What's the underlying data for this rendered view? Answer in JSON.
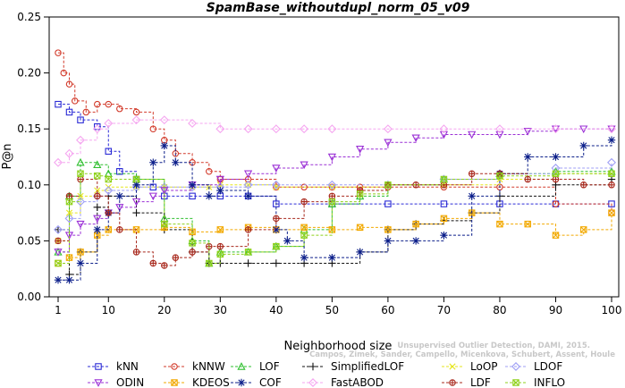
{
  "chart_data": {
    "type": "line",
    "title": "SpamBase_withoutdupl_norm_05_v09",
    "xlabel": "Neighborhood size",
    "ylabel": "P@n",
    "xlim": [
      1,
      100
    ],
    "ylim": [
      0,
      0.25
    ],
    "x_ticks": [
      "1",
      "10",
      "20",
      "30",
      "40",
      "50",
      "60",
      "70",
      "80",
      "90",
      "100"
    ],
    "y_ticks": [
      "0.00",
      "0.05",
      "0.10",
      "0.15",
      "0.20",
      "0.25"
    ],
    "grid": false,
    "legend_position": "bottom",
    "watermark": [
      "Campos, Zimek, Sander, Campello, Micenkova, Schubert, Assent, Houle",
      "Unsupervised Outlier Detection, DAMI, 2015."
    ],
    "series": [
      {
        "name": "kNN",
        "color": "#2b2bd6",
        "marker": "square",
        "x": [
          1,
          3,
          5,
          8,
          10,
          12,
          15,
          18,
          20,
          25,
          30,
          35,
          40,
          50,
          60,
          70,
          80,
          90,
          100
        ],
        "y": [
          0.172,
          0.165,
          0.158,
          0.152,
          0.13,
          0.112,
          0.105,
          0.098,
          0.09,
          0.09,
          0.09,
          0.09,
          0.083,
          0.083,
          0.083,
          0.083,
          0.083,
          0.083,
          0.083
        ]
      },
      {
        "name": "kNNW",
        "color": "#d23a2a",
        "marker": "circle",
        "x": [
          1,
          2,
          3,
          4,
          6,
          8,
          10,
          12,
          15,
          18,
          20,
          22,
          25,
          28,
          30,
          35,
          40,
          45,
          50,
          55,
          60,
          70,
          80,
          90,
          100
        ],
        "y": [
          0.218,
          0.2,
          0.19,
          0.175,
          0.165,
          0.172,
          0.172,
          0.168,
          0.165,
          0.15,
          0.14,
          0.128,
          0.12,
          0.112,
          0.105,
          0.105,
          0.098,
          0.098,
          0.098,
          0.098,
          0.098,
          0.098,
          0.098,
          0.083,
          0.075
        ]
      },
      {
        "name": "LOF",
        "color": "#2fbf2f",
        "marker": "triangle-up",
        "x": [
          1,
          3,
          5,
          8,
          10,
          15,
          20,
          25,
          28,
          30,
          35,
          40,
          45,
          50,
          55,
          60,
          70,
          80,
          90,
          100
        ],
        "y": [
          0.04,
          0.09,
          0.12,
          0.118,
          0.11,
          0.105,
          0.07,
          0.05,
          0.03,
          0.04,
          0.04,
          0.045,
          0.06,
          0.083,
          0.09,
          0.1,
          0.105,
          0.11,
          0.112,
          0.112
        ]
      },
      {
        "name": "SimplifiedLOF",
        "color": "#111111",
        "marker": "plus",
        "x": [
          1,
          3,
          5,
          8,
          10,
          15,
          20,
          25,
          28,
          30,
          35,
          40,
          45,
          50,
          55,
          60,
          65,
          70,
          75,
          80,
          90,
          100
        ],
        "y": [
          0.06,
          0.02,
          0.04,
          0.08,
          0.09,
          0.075,
          0.06,
          0.04,
          0.03,
          0.03,
          0.03,
          0.03,
          0.03,
          0.03,
          0.04,
          0.06,
          0.065,
          0.068,
          0.075,
          0.09,
          0.1,
          0.105
        ]
      },
      {
        "name": "LoOP",
        "color": "#e6e61e",
        "marker": "x",
        "x": [
          1,
          3,
          5,
          8,
          10,
          15,
          20,
          25,
          28,
          30,
          35,
          40,
          50,
          60,
          70,
          80,
          90,
          100
        ],
        "y": [
          0.05,
          0.075,
          0.09,
          0.095,
          0.098,
          0.098,
          0.098,
          0.098,
          0.098,
          0.1,
          0.1,
          0.098,
          0.098,
          0.1,
          0.1,
          0.105,
          0.11,
          0.11
        ]
      },
      {
        "name": "LDOF",
        "color": "#9f9ff5",
        "marker": "diamond",
        "x": [
          1,
          3,
          5,
          8,
          10,
          15,
          20,
          25,
          30,
          35,
          40,
          50,
          60,
          70,
          80,
          90,
          100
        ],
        "y": [
          0.06,
          0.07,
          0.085,
          0.09,
          0.095,
          0.098,
          0.098,
          0.098,
          0.098,
          0.1,
          0.1,
          0.1,
          0.1,
          0.105,
          0.11,
          0.115,
          0.12
        ]
      },
      {
        "name": "ODIN",
        "color": "#9b30d6",
        "marker": "triangle-down",
        "x": [
          1,
          3,
          5,
          8,
          10,
          12,
          15,
          18,
          20,
          25,
          30,
          35,
          40,
          45,
          50,
          55,
          60,
          65,
          70,
          75,
          80,
          85,
          90,
          95,
          100
        ],
        "y": [
          0.04,
          0.055,
          0.065,
          0.07,
          0.075,
          0.08,
          0.085,
          0.09,
          0.095,
          0.1,
          0.105,
          0.11,
          0.115,
          0.118,
          0.125,
          0.132,
          0.138,
          0.142,
          0.145,
          0.145,
          0.145,
          0.148,
          0.15,
          0.15,
          0.15
        ]
      },
      {
        "name": "KDEOS",
        "color": "#f2a900",
        "marker": "square-x",
        "x": [
          1,
          3,
          5,
          8,
          10,
          15,
          20,
          25,
          30,
          35,
          40,
          45,
          50,
          55,
          60,
          65,
          70,
          75,
          80,
          85,
          90,
          95,
          100
        ],
        "y": [
          0.03,
          0.035,
          0.04,
          0.055,
          0.06,
          0.06,
          0.062,
          0.058,
          0.06,
          0.062,
          0.06,
          0.062,
          0.06,
          0.062,
          0.06,
          0.065,
          0.07,
          0.075,
          0.065,
          0.065,
          0.055,
          0.06,
          0.075
        ]
      },
      {
        "name": "COF",
        "color": "#0c1f8a",
        "marker": "star",
        "x": [
          1,
          3,
          5,
          8,
          10,
          12,
          15,
          18,
          20,
          22,
          25,
          28,
          30,
          35,
          40,
          42,
          45,
          50,
          55,
          60,
          65,
          70,
          75,
          80,
          85,
          90,
          95,
          100
        ],
        "y": [
          0.015,
          0.015,
          0.03,
          0.06,
          0.075,
          0.09,
          0.1,
          0.12,
          0.135,
          0.12,
          0.1,
          0.09,
          0.095,
          0.09,
          0.06,
          0.05,
          0.035,
          0.035,
          0.04,
          0.05,
          0.05,
          0.055,
          0.09,
          0.11,
          0.125,
          0.125,
          0.135,
          0.14
        ]
      },
      {
        "name": "FastABOD",
        "color": "#f5a6f0",
        "marker": "diamond",
        "x": [
          1,
          3,
          5,
          8,
          10,
          15,
          20,
          25,
          30,
          35,
          40,
          45,
          50,
          60,
          70,
          80,
          90,
          100
        ],
        "y": [
          0.12,
          0.128,
          0.14,
          0.15,
          0.155,
          0.158,
          0.158,
          0.155,
          0.15,
          0.15,
          0.15,
          0.15,
          0.15,
          0.15,
          0.15,
          0.15,
          0.15,
          0.15
        ]
      },
      {
        "name": "LDF",
        "color": "#a8281c",
        "marker": "circle-plus",
        "x": [
          1,
          3,
          5,
          8,
          10,
          12,
          15,
          18,
          20,
          22,
          25,
          28,
          30,
          35,
          40,
          45,
          50,
          55,
          60,
          65,
          70,
          75,
          80,
          85,
          90,
          95,
          100
        ],
        "y": [
          0.05,
          0.09,
          0.105,
          0.09,
          0.075,
          0.06,
          0.04,
          0.03,
          0.028,
          0.035,
          0.04,
          0.045,
          0.045,
          0.06,
          0.07,
          0.085,
          0.09,
          0.095,
          0.1,
          0.1,
          0.1,
          0.11,
          0.11,
          0.105,
          0.105,
          0.1,
          0.1
        ]
      },
      {
        "name": "INFLO",
        "color": "#8fd11b",
        "marker": "square-x",
        "x": [
          1,
          3,
          5,
          8,
          10,
          15,
          20,
          25,
          28,
          30,
          35,
          40,
          45,
          50,
          55,
          60,
          70,
          80,
          90,
          100
        ],
        "y": [
          0.03,
          0.085,
          0.11,
          0.108,
          0.105,
          0.105,
          0.065,
          0.048,
          0.03,
          0.038,
          0.04,
          0.045,
          0.055,
          0.085,
          0.092,
          0.1,
          0.105,
          0.108,
          0.11,
          0.11
        ]
      }
    ]
  }
}
